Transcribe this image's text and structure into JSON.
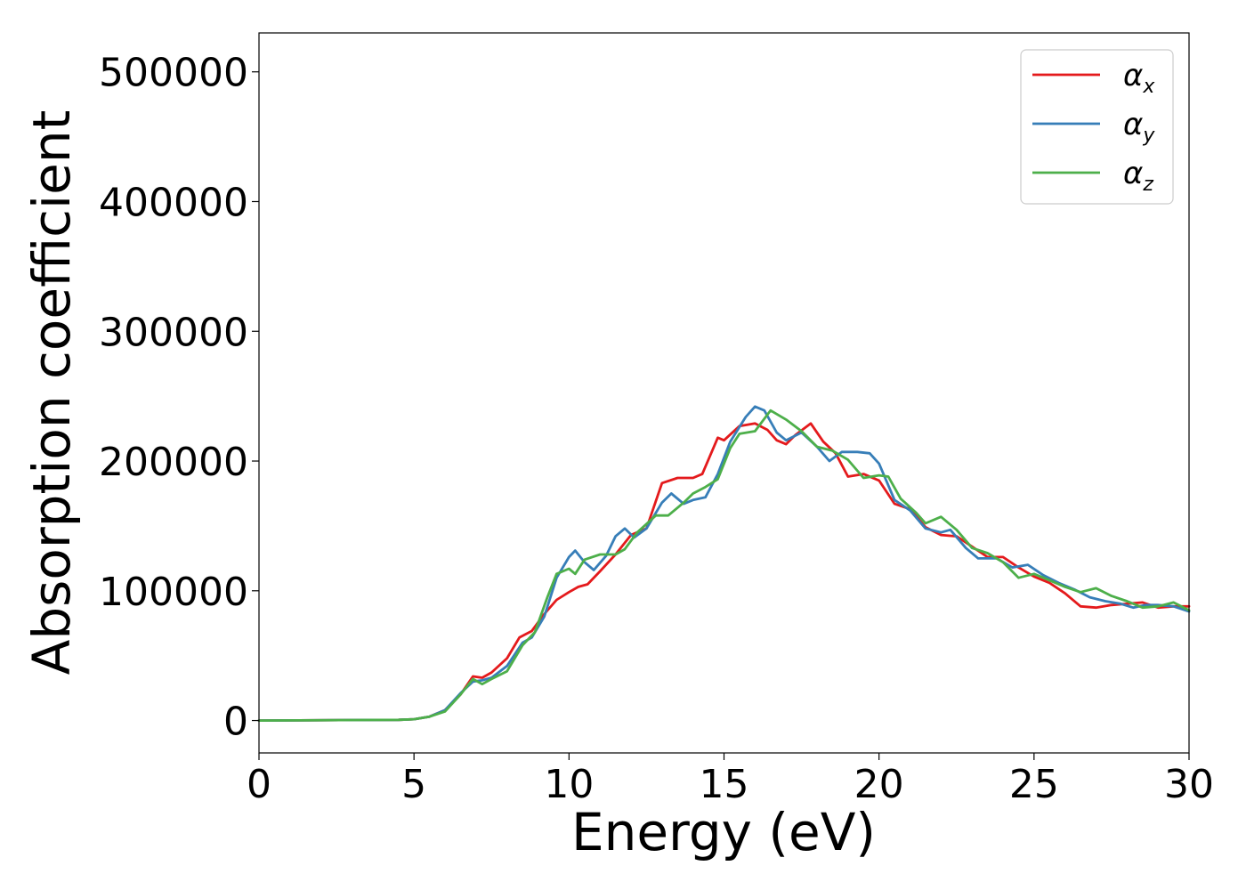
{
  "chart_data": {
    "type": "line",
    "title": "",
    "xlabel": "Energy (eV)",
    "ylabel": "Absorption coefficient",
    "xlim": [
      0,
      30
    ],
    "ylim": [
      -25000,
      530000
    ],
    "xticks": [
      0,
      5,
      10,
      15,
      20,
      25,
      30
    ],
    "yticks": [
      0,
      100000,
      200000,
      300000,
      400000,
      500000
    ],
    "xtick_labels": [
      "0",
      "5",
      "10",
      "15",
      "20",
      "25",
      "30"
    ],
    "ytick_labels": [
      "0",
      "100000",
      "200000",
      "300000",
      "400000",
      "500000"
    ],
    "grid": false,
    "legend": {
      "position": "top-right",
      "entries": [
        {
          "symbol": "α",
          "subscript": "x"
        },
        {
          "symbol": "α",
          "subscript": "y"
        },
        {
          "symbol": "α",
          "subscript": "z"
        }
      ]
    },
    "colors": [
      "#e41a1c",
      "#377eb8",
      "#4daf4a"
    ],
    "series": [
      {
        "color": "#e41a1c",
        "points": [
          [
            0,
            0
          ],
          [
            4.5,
            500
          ],
          [
            5,
            1000
          ],
          [
            5.5,
            3000
          ],
          [
            6,
            8000
          ],
          [
            6.5,
            20000
          ],
          [
            6.9,
            34000
          ],
          [
            7.2,
            33000
          ],
          [
            7.5,
            37000
          ],
          [
            8,
            48000
          ],
          [
            8.4,
            64000
          ],
          [
            8.8,
            69000
          ],
          [
            9.2,
            82000
          ],
          [
            9.6,
            93000
          ],
          [
            10,
            99000
          ],
          [
            10.3,
            103000
          ],
          [
            10.6,
            105000
          ],
          [
            11,
            115000
          ],
          [
            11.5,
            128000
          ],
          [
            12,
            143000
          ],
          [
            12.5,
            148000
          ],
          [
            13,
            183000
          ],
          [
            13.5,
            187000
          ],
          [
            14,
            187000
          ],
          [
            14.3,
            190000
          ],
          [
            14.8,
            218000
          ],
          [
            15,
            216000
          ],
          [
            15.5,
            227000
          ],
          [
            16,
            229000
          ],
          [
            16.4,
            224000
          ],
          [
            16.7,
            216000
          ],
          [
            17,
            213000
          ],
          [
            17.3,
            220000
          ],
          [
            17.8,
            229000
          ],
          [
            18.2,
            215000
          ],
          [
            18.6,
            206000
          ],
          [
            19,
            188000
          ],
          [
            19.5,
            190000
          ],
          [
            20,
            185000
          ],
          [
            20.5,
            167000
          ],
          [
            21,
            163000
          ],
          [
            21.5,
            149000
          ],
          [
            22,
            143000
          ],
          [
            22.5,
            142000
          ],
          [
            23,
            134000
          ],
          [
            23.5,
            126000
          ],
          [
            24,
            126000
          ],
          [
            24.5,
            118000
          ],
          [
            25,
            111000
          ],
          [
            25.5,
            106000
          ],
          [
            26,
            98000
          ],
          [
            26.5,
            88000
          ],
          [
            27,
            87000
          ],
          [
            27.5,
            89000
          ],
          [
            28,
            90000
          ],
          [
            28.5,
            91000
          ],
          [
            29,
            87000
          ],
          [
            29.5,
            88000
          ],
          [
            30,
            88000
          ]
        ]
      },
      {
        "color": "#377eb8",
        "points": [
          [
            0,
            0
          ],
          [
            4.5,
            500
          ],
          [
            5,
            1000
          ],
          [
            5.5,
            3000
          ],
          [
            6,
            8000
          ],
          [
            6.5,
            21000
          ],
          [
            6.9,
            30000
          ],
          [
            7.2,
            31000
          ],
          [
            7.5,
            33000
          ],
          [
            8,
            42000
          ],
          [
            8.5,
            60000
          ],
          [
            8.8,
            64000
          ],
          [
            9.2,
            80000
          ],
          [
            9.6,
            110000
          ],
          [
            10,
            126000
          ],
          [
            10.2,
            131000
          ],
          [
            10.5,
            122000
          ],
          [
            10.8,
            116000
          ],
          [
            11.2,
            127000
          ],
          [
            11.5,
            142000
          ],
          [
            11.8,
            148000
          ],
          [
            12.1,
            141000
          ],
          [
            12.5,
            148000
          ],
          [
            13,
            168000
          ],
          [
            13.3,
            175000
          ],
          [
            13.7,
            167000
          ],
          [
            14,
            170000
          ],
          [
            14.4,
            172000
          ],
          [
            14.8,
            190000
          ],
          [
            15.2,
            215000
          ],
          [
            15.7,
            234000
          ],
          [
            16,
            242000
          ],
          [
            16.3,
            239000
          ],
          [
            16.7,
            222000
          ],
          [
            17,
            216000
          ],
          [
            17.5,
            222000
          ],
          [
            18,
            211000
          ],
          [
            18.4,
            200000
          ],
          [
            18.8,
            207000
          ],
          [
            19.3,
            207000
          ],
          [
            19.7,
            206000
          ],
          [
            20,
            198000
          ],
          [
            20.5,
            170000
          ],
          [
            21,
            162000
          ],
          [
            21.5,
            148000
          ],
          [
            22,
            145000
          ],
          [
            22.3,
            147000
          ],
          [
            22.8,
            133000
          ],
          [
            23.2,
            125000
          ],
          [
            23.8,
            125000
          ],
          [
            24.3,
            118000
          ],
          [
            24.8,
            120000
          ],
          [
            25.3,
            112000
          ],
          [
            25.8,
            106000
          ],
          [
            26.3,
            101000
          ],
          [
            26.8,
            95000
          ],
          [
            27.3,
            92000
          ],
          [
            27.8,
            90000
          ],
          [
            28.2,
            87000
          ],
          [
            28.6,
            89000
          ],
          [
            29,
            89000
          ],
          [
            29.5,
            88000
          ],
          [
            30,
            84000
          ]
        ]
      },
      {
        "color": "#4daf4a",
        "points": [
          [
            0,
            0
          ],
          [
            4.5,
            500
          ],
          [
            5,
            1000
          ],
          [
            5.5,
            3000
          ],
          [
            6,
            7000
          ],
          [
            6.5,
            20000
          ],
          [
            6.9,
            32000
          ],
          [
            7.2,
            28000
          ],
          [
            7.5,
            32000
          ],
          [
            8,
            38000
          ],
          [
            8.5,
            58000
          ],
          [
            8.9,
            68000
          ],
          [
            9.3,
            95000
          ],
          [
            9.6,
            113000
          ],
          [
            10,
            117000
          ],
          [
            10.2,
            113000
          ],
          [
            10.5,
            124000
          ],
          [
            11,
            128000
          ],
          [
            11.5,
            128000
          ],
          [
            11.8,
            132000
          ],
          [
            12.2,
            145000
          ],
          [
            12.8,
            158000
          ],
          [
            13.2,
            158000
          ],
          [
            13.7,
            168000
          ],
          [
            14,
            175000
          ],
          [
            14.4,
            180000
          ],
          [
            14.8,
            186000
          ],
          [
            15.2,
            210000
          ],
          [
            15.5,
            221000
          ],
          [
            16,
            223000
          ],
          [
            16.5,
            239000
          ],
          [
            17,
            232000
          ],
          [
            17.5,
            223000
          ],
          [
            18,
            211000
          ],
          [
            18.5,
            208000
          ],
          [
            19,
            201000
          ],
          [
            19.5,
            187000
          ],
          [
            20,
            189000
          ],
          [
            20.3,
            188000
          ],
          [
            20.7,
            171000
          ],
          [
            21.2,
            160000
          ],
          [
            21.5,
            152000
          ],
          [
            22,
            157000
          ],
          [
            22.5,
            147000
          ],
          [
            23,
            133000
          ],
          [
            23.5,
            129000
          ],
          [
            24,
            122000
          ],
          [
            24.5,
            110000
          ],
          [
            25,
            113000
          ],
          [
            25.5,
            108000
          ],
          [
            26,
            103000
          ],
          [
            26.5,
            99000
          ],
          [
            27,
            102000
          ],
          [
            27.5,
            96000
          ],
          [
            28,
            92000
          ],
          [
            28.5,
            87000
          ],
          [
            29,
            88000
          ],
          [
            29.5,
            91000
          ],
          [
            30,
            85000
          ]
        ]
      }
    ]
  }
}
